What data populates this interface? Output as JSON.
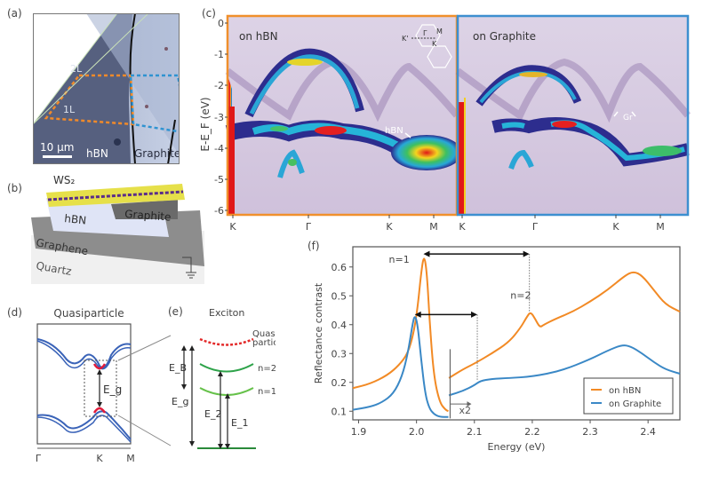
{
  "figure": {
    "panels": {
      "a": {
        "label": "(a)",
        "layer_labels": [
          "2L",
          "1L"
        ],
        "scale_bar": "10 µm",
        "region_labels": [
          "hBN",
          "Graphite"
        ]
      },
      "b": {
        "label": "(b)",
        "layers": [
          "WS₂",
          "hBN",
          "Graphite",
          "Graphene",
          "Quartz"
        ],
        "ground_symbol": "ground-icon"
      },
      "c": {
        "label": "(c)",
        "ylabel": "E-E_F (eV)",
        "yticks": [
          "0",
          "-1",
          "-2",
          "-3",
          "-4",
          "-5",
          "-6"
        ],
        "left_panel": {
          "title": "on hBN",
          "annotation": "hBN",
          "xticks": [
            "K",
            "Γ",
            "K",
            "M"
          ],
          "border_color": "#f0902c"
        },
        "right_panel": {
          "title": "on Graphite",
          "annotation": "Gr",
          "xticks": [
            "K",
            "Γ",
            "K",
            "M"
          ],
          "border_color": "#3d8fd0"
        },
        "bz_inset": {
          "labels": [
            "K'",
            "Γ",
            "M",
            "K"
          ]
        }
      },
      "d": {
        "label": "(d)",
        "title": "Quasiparticle",
        "gap_label": "E_g",
        "xticks": [
          "Γ",
          "K",
          "M"
        ]
      },
      "e": {
        "label": "(e)",
        "title": "Exciton",
        "levels": [
          "Quasi-",
          "particle",
          "n=2",
          "n=1"
        ],
        "energies": [
          "E_B",
          "E_g",
          "E_2",
          "E_1"
        ]
      },
      "f": {
        "label": "(f)"
      }
    }
  },
  "chart_data": {
    "type": "line",
    "title": "",
    "xlabel": "Energy (eV)",
    "ylabel": "Reflectance contrast",
    "xlim": [
      1.89,
      2.455
    ],
    "ylim": [
      0.07,
      0.67
    ],
    "xticks": [
      1.9,
      2.0,
      2.1,
      2.2,
      2.3,
      2.4
    ],
    "yticks": [
      0.1,
      0.2,
      0.3,
      0.4,
      0.5,
      0.6
    ],
    "grid": false,
    "legend": {
      "placement": "bottom-right"
    },
    "annotations": {
      "n1": "n=1",
      "n2": "n=2",
      "scale": "x2",
      "scale_break_x": 2.055
    },
    "series": [
      {
        "name": "on hBN",
        "color": "#f28a25",
        "x": [
          1.89,
          1.92,
          1.95,
          1.97,
          1.985,
          1.995,
          2.002,
          2.008,
          2.013,
          2.018,
          2.023,
          2.03,
          2.04,
          2.05,
          2.055,
          2.056,
          2.08,
          2.1,
          2.13,
          2.16,
          2.18,
          2.19,
          2.197,
          2.205,
          2.213,
          2.22,
          2.24,
          2.27,
          2.3,
          2.33,
          2.36,
          2.375,
          2.39,
          2.41,
          2.43,
          2.455
        ],
        "y": [
          0.18,
          0.195,
          0.225,
          0.26,
          0.3,
          0.37,
          0.46,
          0.58,
          0.645,
          0.58,
          0.4,
          0.22,
          0.13,
          0.105,
          0.1,
          0.215,
          0.245,
          0.265,
          0.3,
          0.34,
          0.39,
          0.425,
          0.445,
          0.42,
          0.39,
          0.4,
          0.42,
          0.445,
          0.48,
          0.52,
          0.57,
          0.585,
          0.57,
          0.52,
          0.47,
          0.445
        ]
      },
      {
        "name": "on Graphite",
        "color": "#3a88c6",
        "x": [
          1.89,
          1.92,
          1.94,
          1.96,
          1.975,
          1.985,
          1.993,
          1.997,
          2.002,
          2.008,
          2.015,
          2.022,
          2.03,
          2.04,
          2.055,
          2.056,
          2.08,
          2.1,
          2.11,
          2.13,
          2.16,
          2.2,
          2.25,
          2.3,
          2.33,
          2.355,
          2.37,
          2.39,
          2.41,
          2.43,
          2.455
        ],
        "y": [
          0.105,
          0.115,
          0.13,
          0.16,
          0.22,
          0.3,
          0.4,
          0.435,
          0.4,
          0.28,
          0.16,
          0.11,
          0.09,
          0.08,
          0.08,
          0.155,
          0.17,
          0.19,
          0.205,
          0.212,
          0.215,
          0.22,
          0.24,
          0.28,
          0.31,
          0.33,
          0.325,
          0.3,
          0.27,
          0.245,
          0.23
        ]
      }
    ],
    "arrows": [
      {
        "from": 2.012,
        "to": 2.195,
        "y": 0.645,
        "label": "on hBN n=1 → n=2"
      },
      {
        "from": 1.997,
        "to": 2.105,
        "y": 0.435,
        "label": "on Graphite n=1 → n=2"
      }
    ]
  }
}
